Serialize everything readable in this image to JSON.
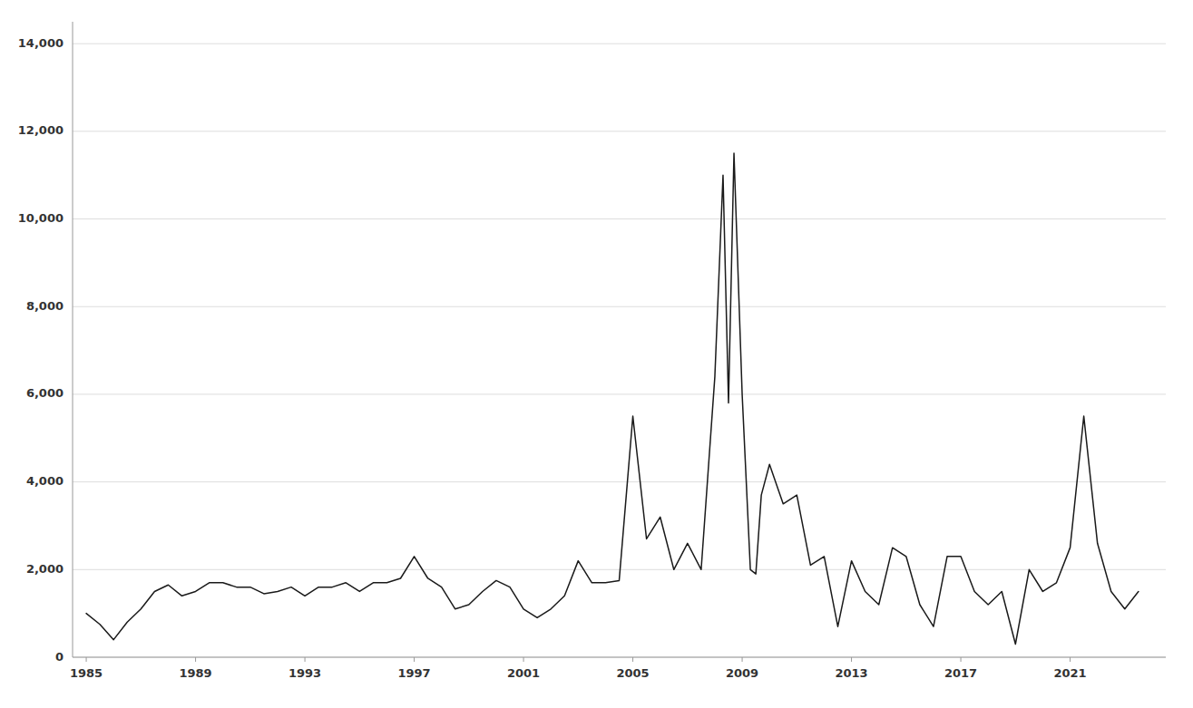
{
  "chart_data": {
    "type": "line",
    "x": [
      1985.0,
      1985.5,
      1986.0,
      1986.5,
      1987.0,
      1987.5,
      1988.0,
      1988.5,
      1989.0,
      1989.5,
      1990.0,
      1990.5,
      1991.0,
      1991.5,
      1992.0,
      1992.5,
      1993.0,
      1993.5,
      1994.0,
      1994.5,
      1995.0,
      1995.5,
      1996.0,
      1996.5,
      1997.0,
      1997.5,
      1998.0,
      1998.5,
      1999.0,
      1999.5,
      2000.0,
      2000.5,
      2001.0,
      2001.5,
      2002.0,
      2002.5,
      2003.0,
      2003.5,
      2004.0,
      2004.5,
      2005.0,
      2005.5,
      2006.0,
      2006.5,
      2007.0,
      2007.5,
      2008.0,
      2008.3,
      2008.5,
      2008.7,
      2009.0,
      2009.3,
      2009.5,
      2009.7,
      2010.0,
      2010.5,
      2011.0,
      2011.5,
      2012.0,
      2012.5,
      2013.0,
      2013.5,
      2014.0,
      2014.5,
      2015.0,
      2015.5,
      2016.0,
      2016.5,
      2017.0,
      2017.5,
      2018.0,
      2018.5,
      2019.0,
      2019.5,
      2020.0,
      2020.5,
      2021.0,
      2021.5,
      2022.0,
      2022.5,
      2023.0,
      2023.5
    ],
    "values": [
      1000,
      750,
      400,
      800,
      1100,
      1500,
      1650,
      1400,
      1500,
      1700,
      1700,
      1600,
      1600,
      1450,
      1500,
      1600,
      1400,
      1600,
      1600,
      1700,
      1500,
      1700,
      1700,
      1800,
      2300,
      1800,
      1600,
      1100,
      1200,
      1500,
      1750,
      1600,
      1100,
      900,
      1100,
      1400,
      2200,
      1700,
      1700,
      1750,
      5500,
      2700,
      3200,
      2000,
      2600,
      2000,
      6400,
      11000,
      5800,
      11500,
      6000,
      2000,
      1900,
      3700,
      4400,
      3500,
      3700,
      2100,
      2300,
      700,
      2200,
      1500,
      1200,
      2500,
      2300,
      1200,
      700,
      2300,
      2300,
      1500,
      1200,
      1500,
      300,
      2000,
      1500,
      1700,
      2500,
      5500,
      2600,
      1500,
      1100,
      1500
    ],
    "color": "#1a1a1a",
    "xlim": [
      1984.5,
      2024.5
    ],
    "xticks": [
      1985,
      1989,
      1993,
      1997,
      2001,
      2005,
      2009,
      2013,
      2017,
      2021
    ],
    "ylim": [
      0,
      14500
    ],
    "yticks": [
      0,
      {
        "value": 2000,
        "label": "2,000"
      },
      {
        "value": 4000,
        "label": "4,000"
      },
      {
        "value": 6000,
        "label": "6,000"
      },
      {
        "value": 8000,
        "label": "8,000"
      },
      {
        "value": 10000,
        "label": "10,000"
      },
      {
        "value": 12000,
        "label": "12,000"
      },
      {
        "value": 14000,
        "label": "14,000"
      }
    ],
    "grid": true
  }
}
